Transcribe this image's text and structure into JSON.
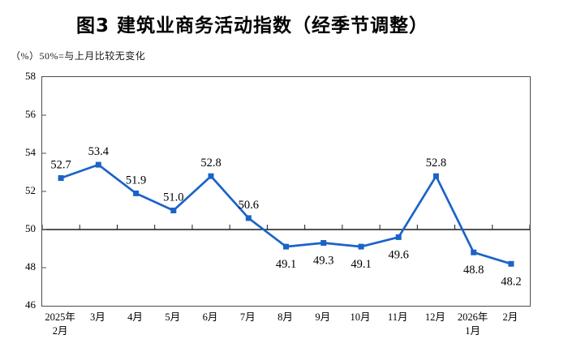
{
  "title": "图3 建筑业商务活动指数（经季节调整）",
  "subtitle": "（%）50%=与上月比较无变化",
  "colors": {
    "line": "#1B63C8",
    "marker": "#1B63C8",
    "axis_border": "#4d4d4d",
    "reference_line": "#1a1a1a",
    "text": "#000000",
    "background": "#FFFFFF"
  },
  "chart_data": {
    "type": "line",
    "title": "图3 建筑业商务活动指数（经季节调整）",
    "unit_note": "（%）50%=与上月比较无变化",
    "categories": [
      "2025年\n2月",
      "3月",
      "4月",
      "5月",
      "6月",
      "7月",
      "8月",
      "9月",
      "10月",
      "11月",
      "12月",
      "2026年\n1月",
      "2月"
    ],
    "series": [
      {
        "name": "建筑业商务活动指数（经季节调整）",
        "values": [
          52.7,
          53.4,
          51.9,
          51.0,
          52.8,
          50.6,
          49.1,
          49.3,
          49.1,
          49.6,
          52.8,
          48.8,
          48.2
        ]
      }
    ],
    "data_labels": [
      "52.7",
      "53.4",
      "51.9",
      "51.0",
      "52.8",
      "50.6",
      "49.1",
      "49.3",
      "49.1",
      "49.6",
      "52.8",
      "48.8",
      "48.2"
    ],
    "label_positions": [
      "above",
      "above",
      "above",
      "above",
      "above",
      "above",
      "below",
      "below",
      "below",
      "below",
      "above",
      "below",
      "below"
    ],
    "xlabel": "",
    "ylabel": "%",
    "ylim": [
      46,
      58
    ],
    "yticks": [
      58,
      56,
      54,
      52,
      50,
      48,
      46
    ],
    "reference_line": 50,
    "grid": false,
    "legend_position": "none",
    "marker_shape": "square"
  }
}
